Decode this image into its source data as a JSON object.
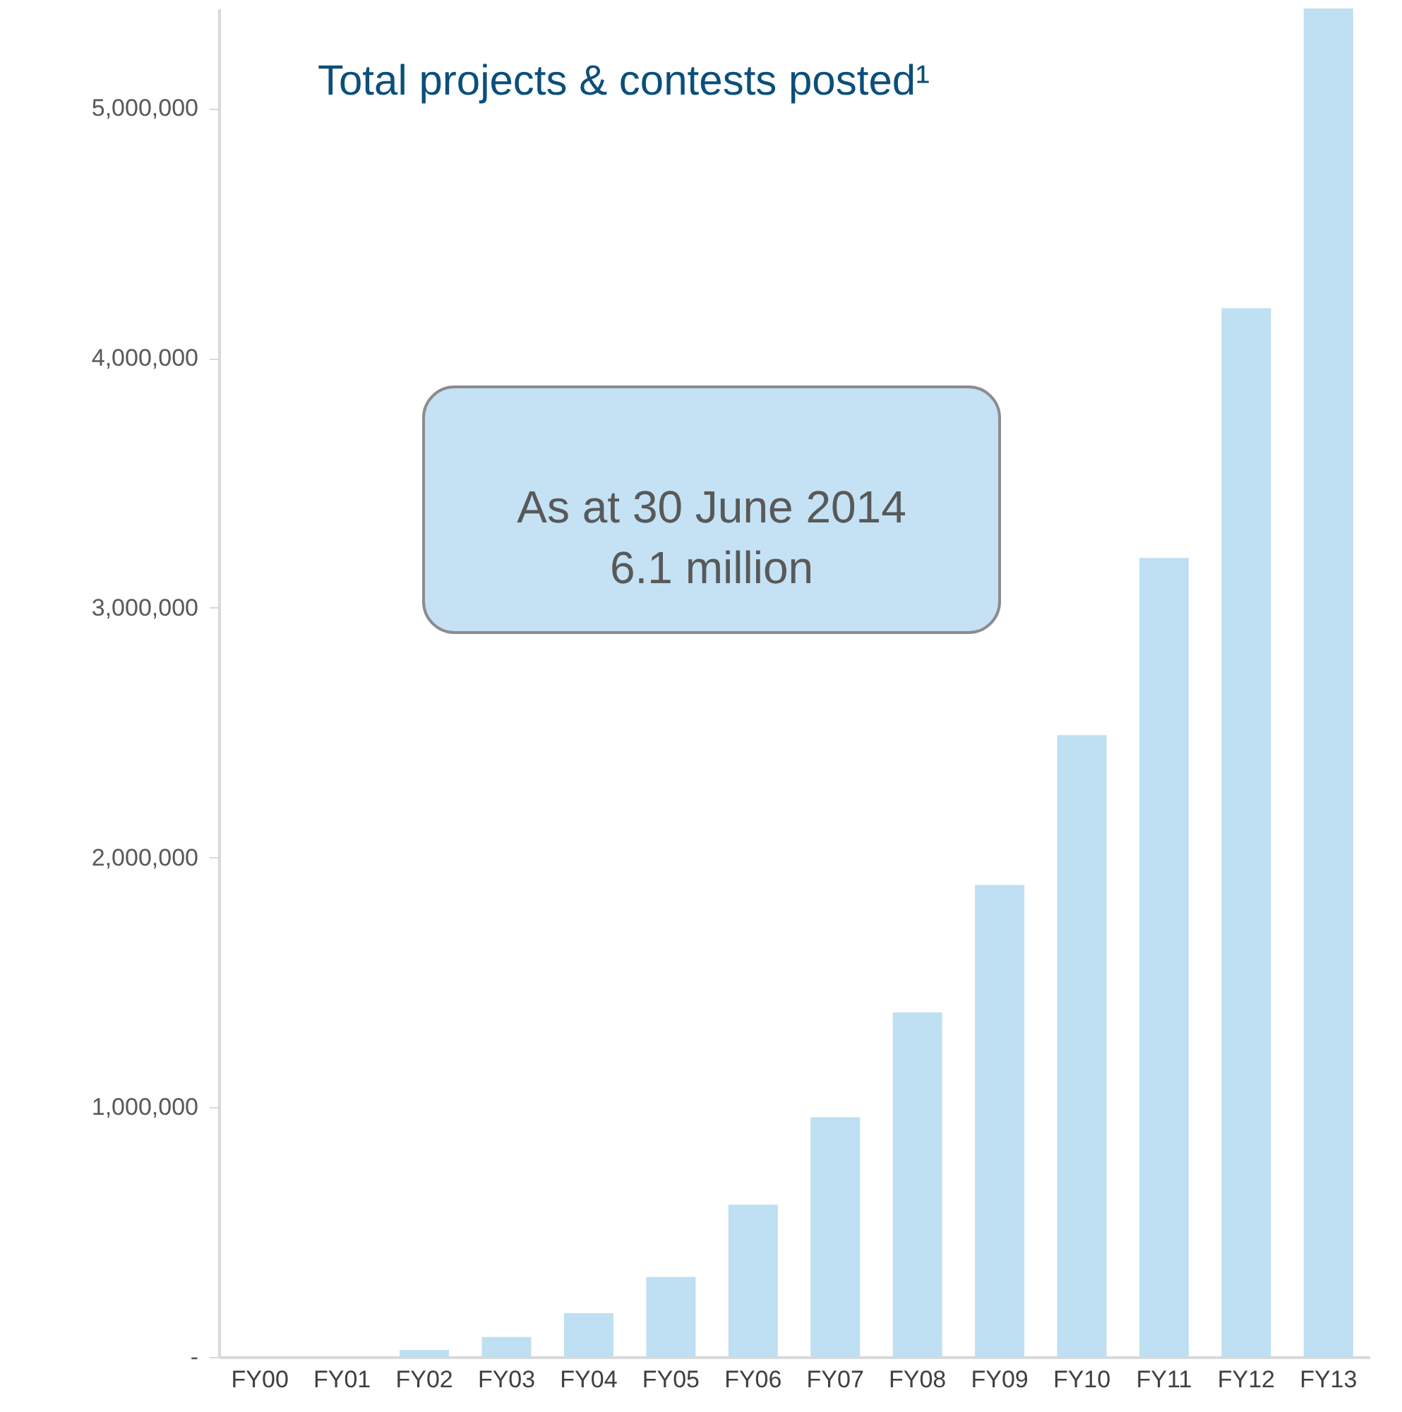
{
  "chart_data": {
    "type": "bar",
    "title": "Total projects & contests posted¹",
    "categories": [
      "FY00",
      "FY01",
      "FY02",
      "FY03",
      "FY04",
      "FY05",
      "FY06",
      "FY07",
      "FY08",
      "FY09",
      "FY10",
      "FY11",
      "FY12",
      "FY13"
    ],
    "values": [
      null,
      null,
      28000,
      80000,
      175000,
      320000,
      610000,
      960000,
      1380000,
      1890000,
      2490000,
      3200000,
      4200000,
      5400000
    ],
    "color": "#bfdff2",
    "ylim": [
      0,
      5400000
    ],
    "yticks": [
      {
        "value": 0,
        "label": "-"
      },
      {
        "value": 1000000,
        "label": "1,000,000"
      },
      {
        "value": 2000000,
        "label": "2,000,000"
      },
      {
        "value": 3000000,
        "label": "3,000,000"
      },
      {
        "value": 4000000,
        "label": "4,000,000"
      },
      {
        "value": 5000000,
        "label": "5,000,000"
      }
    ],
    "grid": false,
    "annotations": [
      "As at 30 June 2014\n6.1 million"
    ]
  }
}
